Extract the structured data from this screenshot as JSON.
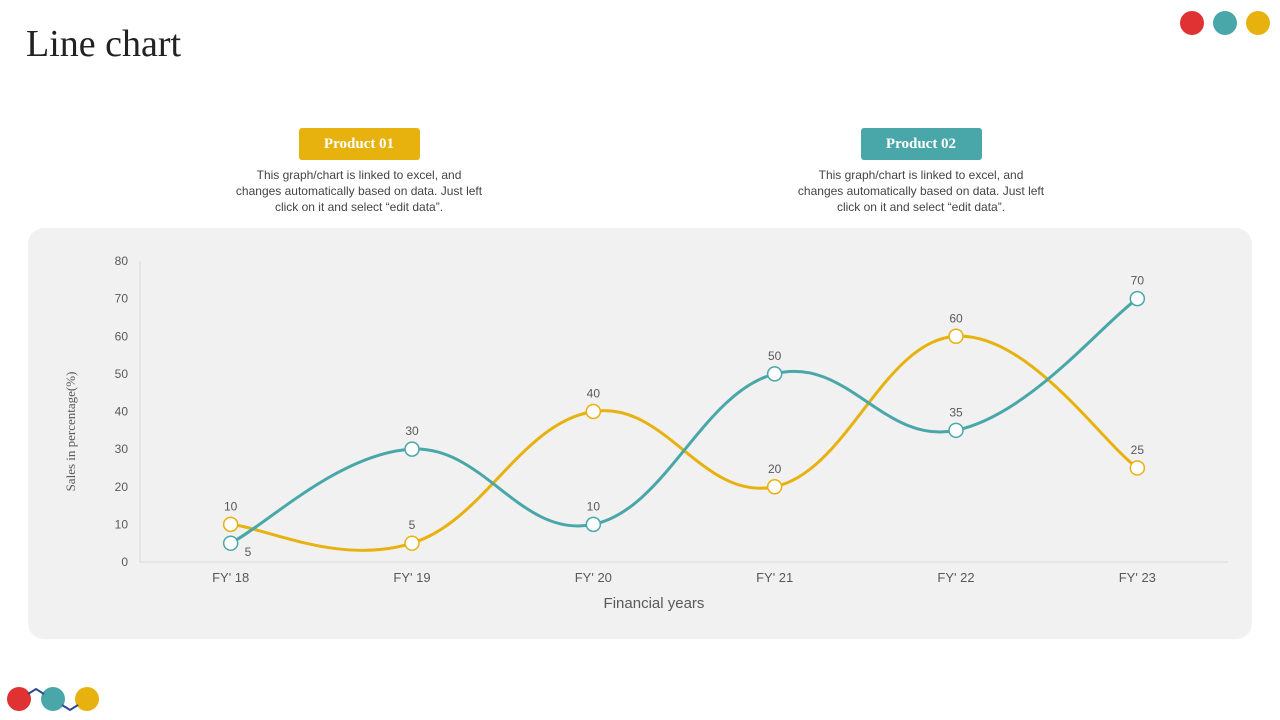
{
  "page": {
    "title": "Line chart"
  },
  "colors": {
    "red": "#e03232",
    "teal": "#4aa7a9",
    "gold": "#e8b20e"
  },
  "legend": [
    {
      "label": "Product 01",
      "color": "#e8b20e",
      "description": "This graph/chart is linked to excel, and changes automatically based on data. Just left click on it and select “edit data”."
    },
    {
      "label": "Product 02",
      "color": "#4aa7a9",
      "description": "This graph/chart is linked to excel, and changes automatically based on data. Just left click on it and select “edit data”."
    }
  ],
  "chart_data": {
    "type": "line",
    "smooth": true,
    "categories": [
      "FY' 18",
      "FY' 19",
      "FY' 20",
      "FY' 21",
      "FY' 22",
      "FY' 23"
    ],
    "series": [
      {
        "name": "Product 01",
        "color": "#e8b20e",
        "values": [
          10,
          5,
          40,
          20,
          60,
          25
        ]
      },
      {
        "name": "Product 02",
        "color": "#4aa7a9",
        "values": [
          5,
          30,
          10,
          50,
          35,
          70
        ]
      }
    ],
    "xlabel": "Financial years",
    "ylabel": "Sales in percentage(%)",
    "ylim": [
      0,
      80
    ],
    "yticks": [
      0,
      10,
      20,
      30,
      40,
      50,
      60,
      70,
      80
    ],
    "data_labels": true,
    "grid": false
  }
}
